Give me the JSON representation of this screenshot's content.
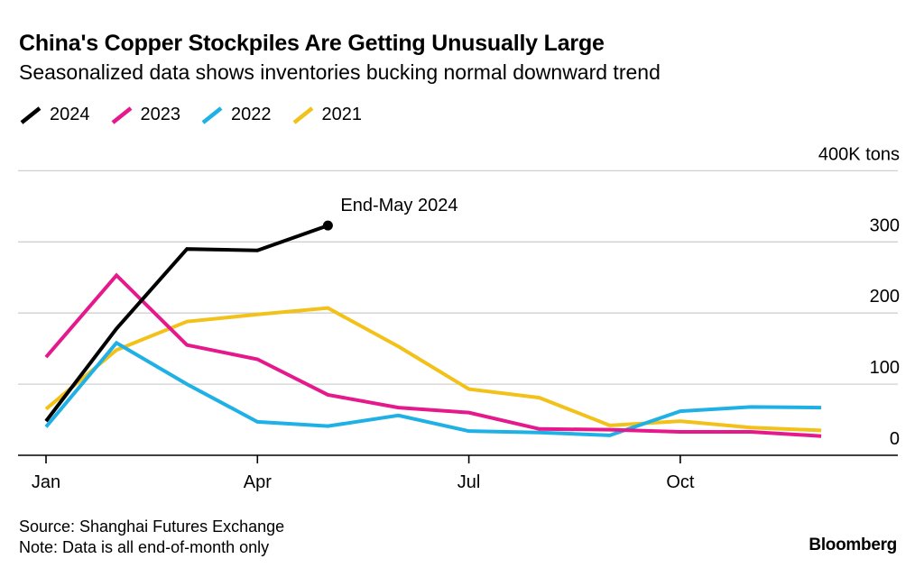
{
  "title": "China's Copper Stockpiles Are Getting Unusually Large",
  "subtitle": "Seasonalized data shows inventories bucking normal downward trend",
  "source": "Source: Shanghai Futures Exchange",
  "note": "Note: Data is all end-of-month only",
  "brand": "Bloomberg",
  "chart_data": {
    "type": "line",
    "x_ticks": [
      {
        "label": "Jan",
        "month": 1
      },
      {
        "label": "Apr",
        "month": 4
      },
      {
        "label": "Jul",
        "month": 7
      },
      {
        "label": "Oct",
        "month": 10
      }
    ],
    "y_ticks": [
      {
        "label": "0",
        "value": 0
      },
      {
        "label": "100",
        "value": 100
      },
      {
        "label": "200",
        "value": 200
      },
      {
        "label": "300",
        "value": 300
      },
      {
        "label": "400K tons",
        "value": 400
      }
    ],
    "ylim": [
      0,
      400
    ],
    "xlim": [
      1,
      12.8
    ],
    "grid": true,
    "y_axis_position": "right",
    "legend_position": "top-left",
    "annotation": {
      "text": "End-May 2024",
      "series": "2024",
      "month": 5,
      "value": 323
    },
    "series": [
      {
        "name": "2024",
        "color": "#000000",
        "months": [
          1,
          2,
          3,
          4,
          5
        ],
        "values": [
          48,
          178,
          290,
          288,
          323
        ]
      },
      {
        "name": "2023",
        "color": "#e5198c",
        "months": [
          1,
          2,
          3,
          4,
          5,
          6,
          7,
          8,
          9,
          10,
          11,
          12
        ],
        "values": [
          138,
          253,
          155,
          135,
          85,
          67,
          60,
          37,
          36,
          33,
          33,
          27
        ]
      },
      {
        "name": "2022",
        "color": "#1fb1e6",
        "months": [
          1,
          2,
          3,
          4,
          5,
          6,
          7,
          8,
          9,
          10,
          11,
          12
        ],
        "values": [
          40,
          158,
          100,
          47,
          41,
          56,
          34,
          32,
          28,
          62,
          68,
          67
        ]
      },
      {
        "name": "2021",
        "color": "#f2c11a",
        "months": [
          1,
          2,
          3,
          4,
          5,
          6,
          7,
          8,
          9,
          10,
          11,
          12
        ],
        "values": [
          65,
          148,
          188,
          198,
          207,
          153,
          93,
          81,
          42,
          48,
          39,
          35
        ]
      }
    ]
  }
}
